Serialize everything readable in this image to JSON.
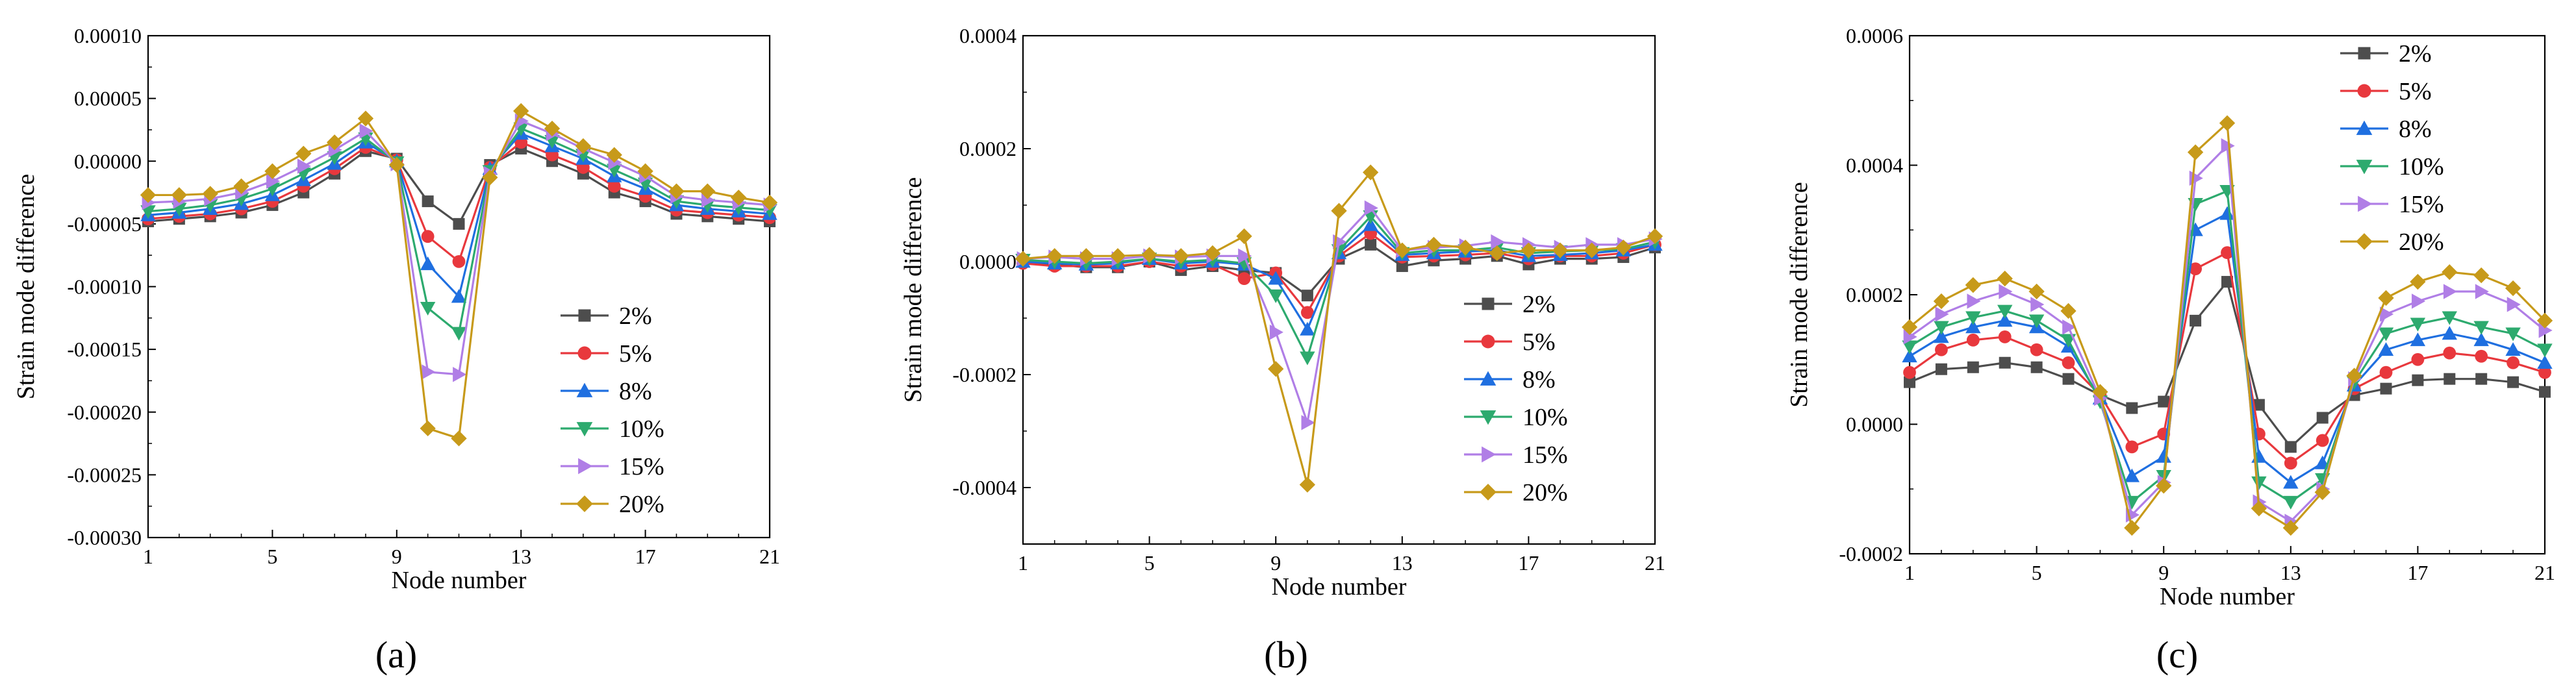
{
  "colors": {
    "s2": "#4d4d4d",
    "s5": "#e8383d",
    "s8": "#1f6fe0",
    "s10": "#2daa6e",
    "s15": "#b07ee6",
    "s20": "#c79a1a"
  },
  "markers": [
    "square",
    "circle",
    "triangle-up",
    "triangle-down",
    "triangle-right",
    "diamond"
  ],
  "chart_data": [
    {
      "type": "line",
      "panel_label": "(a)",
      "xlabel": "Node number",
      "ylabel": "Strain mode difference",
      "xlim": [
        1,
        21
      ],
      "ylim": [
        -0.0003,
        0.0001
      ],
      "xticks": [
        1,
        5,
        9,
        13,
        17,
        21
      ],
      "yticks": [
        -0.0003,
        -0.00025,
        -0.0002,
        -0.00015,
        -0.0001,
        -5e-05,
        0,
        5e-05,
        0.0001
      ],
      "ytick_labels": [
        "-0.00030",
        "-0.00025",
        "-0.00020",
        "-0.00015",
        "-0.00010",
        "-0.00005",
        "0.00000",
        "0.00005",
        "0.00010"
      ],
      "legend_position": "lower-right",
      "x": [
        1,
        2,
        3,
        4,
        5,
        6,
        7,
        8,
        9,
        10,
        11,
        12,
        13,
        14,
        15,
        16,
        17,
        18,
        19,
        20,
        21
      ],
      "series": [
        {
          "name": "2%",
          "values": [
            -4.8e-05,
            -4.6e-05,
            -4.4e-05,
            -4.1e-05,
            -3.5e-05,
            -2.5e-05,
            -1e-05,
            8e-06,
            2e-06,
            -3.2e-05,
            -5e-05,
            -3e-06,
            1e-05,
            0.0,
            -1e-05,
            -2.5e-05,
            -3.2e-05,
            -4.2e-05,
            -4.4e-05,
            -4.6e-05,
            -4.8e-05
          ]
        },
        {
          "name": "5%",
          "values": [
            -4.6e-05,
            -4.4e-05,
            -4.2e-05,
            -3.8e-05,
            -3.2e-05,
            -2e-05,
            -6e-06,
            1.1e-05,
            1e-06,
            -6e-05,
            -8e-05,
            -5e-06,
            1.5e-05,
            5e-06,
            -5e-06,
            -2e-05,
            -2.8e-05,
            -3.9e-05,
            -4.1e-05,
            -4.3e-05,
            -4.5e-05
          ]
        },
        {
          "name": "8%",
          "values": [
            -4.3e-05,
            -4.1e-05,
            -3.8e-05,
            -3.4e-05,
            -2.7e-05,
            -1.5e-05,
            -2e-06,
            1.5e-05,
            0.0,
            -8.2e-05,
            -0.000108,
            -6e-06,
            2.2e-05,
            1.2e-05,
            2e-06,
            -1.2e-05,
            -2.2e-05,
            -3.5e-05,
            -3.8e-05,
            -4e-05,
            -4.2e-05
          ]
        },
        {
          "name": "10%",
          "values": [
            -4e-05,
            -3.8e-05,
            -3.5e-05,
            -3e-05,
            -2.2e-05,
            -1e-05,
            3e-06,
            1.8e-05,
            -1e-06,
            -0.000117,
            -0.000137,
            -8e-06,
            2.6e-05,
            1.6e-05,
            5e-06,
            -7e-06,
            -1.8e-05,
            -3.2e-05,
            -3.5e-05,
            -3.7e-05,
            -3.9e-05
          ]
        },
        {
          "name": "15%",
          "values": [
            -3.3e-05,
            -3.2e-05,
            -3e-05,
            -2.5e-05,
            -1.6e-05,
            -4e-06,
            9e-06,
            2.4e-05,
            -2e-06,
            -0.000168,
            -0.00017,
            -1e-05,
            3.2e-05,
            2.2e-05,
            1e-05,
            -1e-06,
            -1.2e-05,
            -2.8e-05,
            -3.1e-05,
            -3.3e-05,
            -3.5e-05
          ]
        },
        {
          "name": "20%",
          "values": [
            -2.7e-05,
            -2.7e-05,
            -2.6e-05,
            -2e-05,
            -8e-06,
            6e-06,
            1.5e-05,
            3.4e-05,
            -3e-06,
            -0.000213,
            -0.000221,
            -1.3e-05,
            4e-05,
            2.6e-05,
            1.2e-05,
            5e-06,
            -8e-06,
            -2.4e-05,
            -2.4e-05,
            -2.9e-05,
            -3.3e-05
          ]
        }
      ]
    },
    {
      "type": "line",
      "panel_label": "(b)",
      "xlabel": "Node number",
      "ylabel": "Strain mode difference",
      "xlim": [
        1,
        21
      ],
      "ylim": [
        -0.0005,
        0.0004
      ],
      "xticks": [
        1,
        5,
        9,
        13,
        17,
        21
      ],
      "yticks": [
        -0.0004,
        -0.0002,
        0,
        0.0002,
        0.0004
      ],
      "ytick_labels": [
        "-0.0004",
        "-0.0002",
        "0.0000",
        "0.0002",
        "0.0004"
      ],
      "legend_position": "lower-right",
      "x": [
        1,
        2,
        3,
        4,
        5,
        6,
        7,
        8,
        9,
        10,
        11,
        12,
        13,
        14,
        15,
        16,
        17,
        18,
        19,
        20,
        21
      ],
      "series": [
        {
          "name": "2%",
          "values": [
            0.0,
            -5e-06,
            -1e-05,
            -1e-05,
            0.0,
            -1.5e-05,
            -8e-06,
            -1.5e-05,
            -2e-05,
            -6e-05,
            5e-06,
            3e-05,
            -8e-06,
            2e-06,
            5e-06,
            1e-05,
            -5e-06,
            5e-06,
            5e-06,
            8e-06,
            2.5e-05
          ]
        },
        {
          "name": "5%",
          "values": [
            -3e-06,
            -8e-06,
            -8e-06,
            -8e-06,
            0.0,
            -8e-06,
            -5e-06,
            -3e-05,
            -2e-05,
            -9e-05,
            1e-05,
            5e-05,
            8e-06,
            1e-05,
            1.2e-05,
            1.5e-05,
            5e-06,
            1e-05,
            1e-05,
            1.5e-05,
            3e-05
          ]
        },
        {
          "name": "8%",
          "values": [
            0.0,
            -3e-06,
            -5e-06,
            -3e-06,
            5e-06,
            -3e-06,
            0.0,
            -5e-06,
            -3e-05,
            -0.00012,
            1.5e-05,
            6.5e-05,
            1.2e-05,
            1.5e-05,
            1.8e-05,
            2e-05,
            1e-05,
            1.2e-05,
            1.5e-05,
            2e-05,
            3e-05
          ]
        },
        {
          "name": "10%",
          "values": [
            3e-06,
            0.0,
            -3e-06,
            0.0,
            5e-06,
            0.0,
            3e-06,
            -3e-06,
            -6e-05,
            -0.00017,
            2e-05,
            8e-05,
            1.5e-05,
            2e-05,
            2e-05,
            2.5e-05,
            1.5e-05,
            1.8e-05,
            2e-05,
            2.2e-05,
            3.5e-05
          ]
        },
        {
          "name": "15%",
          "values": [
            5e-06,
            8e-06,
            5e-06,
            5e-06,
            1e-05,
            8e-06,
            1e-05,
            1e-05,
            -0.000125,
            -0.000285,
            3.5e-05,
            9.5e-05,
            2e-05,
            2.5e-05,
            2.8e-05,
            3.5e-05,
            3e-05,
            2.5e-05,
            3e-05,
            3e-05,
            4e-05
          ]
        },
        {
          "name": "20%",
          "values": [
            5e-06,
            1e-05,
            1e-05,
            1e-05,
            1.2e-05,
            1e-05,
            1.5e-05,
            4.5e-05,
            -0.00019,
            -0.000395,
            9e-05,
            0.000158,
            2e-05,
            3e-05,
            2.5e-05,
            1.5e-05,
            2e-05,
            2e-05,
            2e-05,
            2.5e-05,
            4.5e-05
          ]
        }
      ]
    },
    {
      "type": "line",
      "panel_label": "(c)",
      "xlabel": "Node number",
      "ylabel": "Strain mode difference",
      "xlim": [
        1,
        21
      ],
      "ylim": [
        -0.0002,
        0.0006
      ],
      "xticks": [
        1,
        5,
        9,
        13,
        17,
        21
      ],
      "yticks": [
        -0.0002,
        0,
        0.0002,
        0.0004,
        0.0006
      ],
      "ytick_labels": [
        "-0.0002",
        "0.0000",
        "0.0002",
        "0.0004",
        "0.0006"
      ],
      "legend_position": "top-left",
      "x": [
        1,
        2,
        3,
        4,
        5,
        6,
        7,
        8,
        9,
        10,
        11,
        12,
        13,
        14,
        15,
        16,
        17,
        18,
        19,
        20,
        21
      ],
      "series": [
        {
          "name": "2%",
          "values": [
            6.5e-05,
            8.5e-05,
            8.8e-05,
            9.5e-05,
            8.8e-05,
            7e-05,
            4.5e-05,
            2.5e-05,
            3.5e-05,
            0.00016,
            0.00022,
            3e-05,
            -3.5e-05,
            1e-05,
            4.5e-05,
            5.5e-05,
            6.8e-05,
            7e-05,
            7e-05,
            6.5e-05,
            5e-05
          ]
        },
        {
          "name": "5%",
          "values": [
            8e-05,
            0.000115,
            0.00013,
            0.000135,
            0.000115,
            9.5e-05,
            4.5e-05,
            -3.5e-05,
            -1.5e-05,
            0.00024,
            0.000265,
            -1.5e-05,
            -6e-05,
            -2.5e-05,
            5.5e-05,
            8e-05,
            0.0001,
            0.00011,
            0.000105,
            9.5e-05,
            8e-05
          ]
        },
        {
          "name": "8%",
          "values": [
            0.000105,
            0.000135,
            0.00015,
            0.00016,
            0.00015,
            0.00012,
            4e-05,
            -8e-05,
            -5e-05,
            0.0003,
            0.000325,
            -5e-05,
            -9e-05,
            -6e-05,
            6e-05,
            0.000115,
            0.00013,
            0.00014,
            0.00013,
            0.000115,
            9.5e-05
          ]
        },
        {
          "name": "10%",
          "values": [
            0.00012,
            0.00015,
            0.000165,
            0.000175,
            0.00016,
            0.00013,
            3.5e-05,
            -0.00012,
            -8e-05,
            0.00034,
            0.00036,
            -9e-05,
            -0.00012,
            -8.5e-05,
            6.5e-05,
            0.00014,
            0.000155,
            0.000165,
            0.00015,
            0.00014,
            0.000115
          ]
        },
        {
          "name": "15%",
          "values": [
            0.000135,
            0.00017,
            0.00019,
            0.000205,
            0.000185,
            0.00015,
            4e-05,
            -0.00014,
            -9e-05,
            0.00038,
            0.00043,
            -0.00012,
            -0.00015,
            -0.0001,
            7e-05,
            0.00017,
            0.00019,
            0.000205,
            0.000205,
            0.000185,
            0.000145
          ]
        },
        {
          "name": "20%",
          "values": [
            0.00015,
            0.00019,
            0.000215,
            0.000225,
            0.000205,
            0.000175,
            5e-05,
            -0.00016,
            -9.5e-05,
            0.00042,
            0.000465,
            -0.00013,
            -0.00016,
            -0.000105,
            7.5e-05,
            0.000195,
            0.00022,
            0.000235,
            0.00023,
            0.00021,
            0.00016
          ]
        }
      ]
    }
  ]
}
